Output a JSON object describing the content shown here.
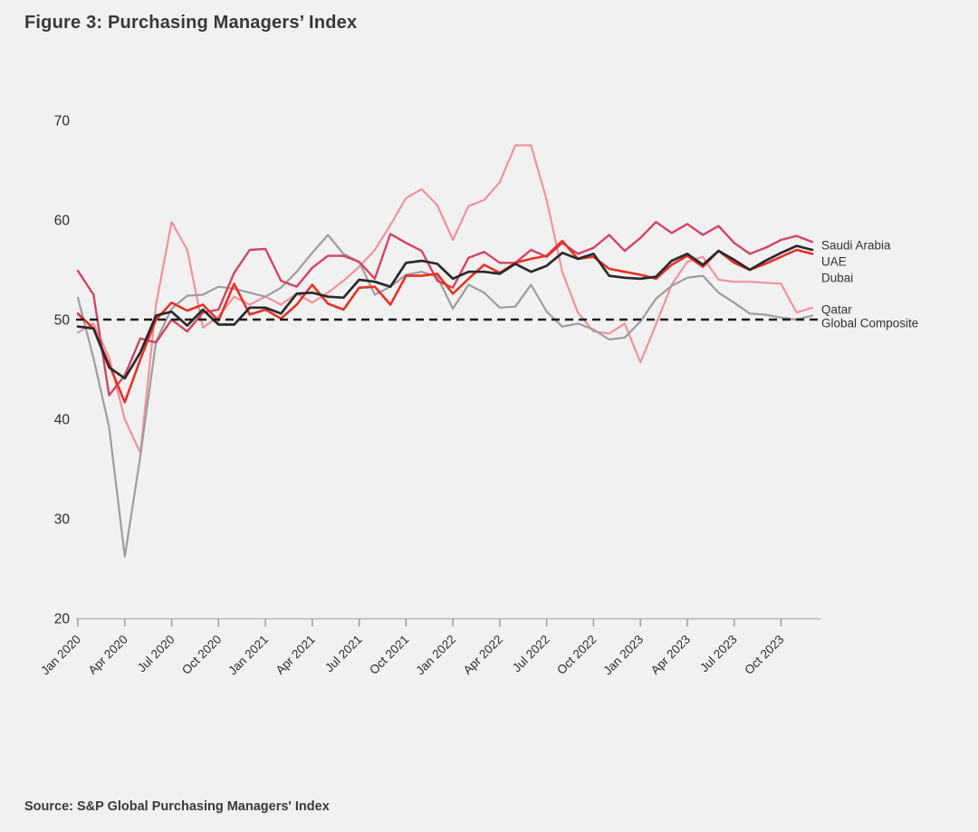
{
  "figure": {
    "title": "Figure 3: Purchasing Managers’ Index",
    "source": "Source: S&P Global Purchasing Managers' Index"
  },
  "chart_data": {
    "type": "line",
    "title": "Figure 3: Purchasing Managers’ Index",
    "x_start": "Jan 2020",
    "x_end": "Dec 2023",
    "frequency": "monthly",
    "x_tick_labels": [
      "Jan 2020",
      "Apr 2020",
      "Jul 2020",
      "Oct 2020",
      "Jan 2021",
      "Apr 2021",
      "Jul 2021",
      "Oct 2021",
      "Jan 2022",
      "Apr 2022",
      "Jul 2022",
      "Oct 2022",
      "Jan 2023",
      "Apr 2023",
      "Jul 2023",
      "Oct 2023"
    ],
    "y_ticks": [
      20,
      30,
      40,
      50,
      60,
      70
    ],
    "ylim": [
      20,
      72
    ],
    "reference_line": {
      "value": 50,
      "style": "dashed",
      "color": "#1c1c1c"
    },
    "grid": false,
    "legend_position": "right-of-line-ends",
    "series": [
      {
        "name": "Qatar",
        "color": "#f0929a",
        "values": [
          48.7,
          49.6,
          46.2,
          40.0,
          36.6,
          51.5,
          59.8,
          57.0,
          49.2,
          50.3,
          52.3,
          51.5,
          52.3,
          51.5,
          52.6,
          51.7,
          52.7,
          53.9,
          55.3,
          57.0,
          59.5,
          62.2,
          63.1,
          61.5,
          58.0,
          61.4,
          62.0,
          63.8,
          67.5,
          67.5,
          62.0,
          54.8,
          50.7,
          48.8,
          48.6,
          49.6,
          45.7,
          49.5,
          53.5,
          55.8,
          56.3,
          54.0,
          53.8,
          53.8,
          53.7,
          53.6,
          50.7,
          51.2
        ]
      },
      {
        "name": "Global Composite",
        "color": "#9e9d9d",
        "values": [
          52.2,
          46.1,
          39.2,
          26.2,
          36.3,
          47.8,
          51.1,
          52.4,
          52.5,
          53.3,
          53.1,
          52.7,
          52.3,
          53.2,
          54.8,
          56.7,
          58.5,
          56.6,
          55.8,
          52.5,
          53.3,
          54.5,
          54.8,
          54.3,
          51.1,
          53.5,
          52.7,
          51.2,
          51.3,
          53.5,
          50.8,
          49.3,
          49.6,
          49.0,
          48.0,
          48.2,
          49.8,
          52.1,
          53.4,
          54.2,
          54.4,
          52.7,
          51.7,
          50.6,
          50.5,
          50.2,
          50.0,
          50.4
        ]
      },
      {
        "name": "Saudi Arabia",
        "color": "#d24462",
        "values": [
          54.9,
          52.5,
          42.4,
          44.4,
          48.1,
          47.7,
          50.0,
          48.8,
          50.7,
          51.0,
          54.7,
          57.0,
          57.1,
          53.9,
          53.3,
          55.2,
          56.4,
          56.4,
          55.8,
          54.1,
          58.6,
          57.7,
          56.9,
          53.9,
          53.2,
          56.2,
          56.8,
          55.7,
          55.7,
          57.0,
          56.3,
          57.7,
          56.6,
          57.2,
          58.5,
          56.9,
          58.2,
          59.8,
          58.7,
          59.6,
          58.5,
          59.4,
          57.7,
          56.6,
          57.2,
          58.0,
          58.4,
          57.8
        ]
      },
      {
        "name": "Dubai",
        "color": "#e53227",
        "values": [
          50.6,
          49.1,
          45.5,
          41.7,
          46.0,
          50.0,
          51.7,
          50.9,
          51.5,
          49.9,
          53.6,
          50.5,
          51.0,
          50.1,
          51.5,
          53.5,
          51.6,
          51.0,
          53.2,
          53.3,
          51.5,
          54.4,
          54.4,
          54.6,
          52.6,
          54.1,
          55.5,
          54.7,
          55.7,
          56.1,
          56.4,
          57.9,
          56.1,
          56.3,
          55.1,
          54.8,
          54.5,
          54.1,
          55.5,
          56.4,
          55.3,
          56.9,
          55.7,
          55.0,
          55.6,
          56.3,
          57.0,
          56.6
        ]
      },
      {
        "name": "UAE",
        "color": "#2b292a",
        "values": [
          49.3,
          49.1,
          45.2,
          44.1,
          46.7,
          50.4,
          50.8,
          49.4,
          51.0,
          49.5,
          49.5,
          51.2,
          51.2,
          50.6,
          52.6,
          52.7,
          52.3,
          52.2,
          54.0,
          53.8,
          53.3,
          55.7,
          55.9,
          55.6,
          54.1,
          54.8,
          54.8,
          54.6,
          55.6,
          54.8,
          55.4,
          56.7,
          56.1,
          56.6,
          54.4,
          54.2,
          54.1,
          54.3,
          55.9,
          56.6,
          55.5,
          56.9,
          56.0,
          55.0,
          55.9,
          56.7,
          57.4,
          57.0
        ]
      }
    ]
  }
}
